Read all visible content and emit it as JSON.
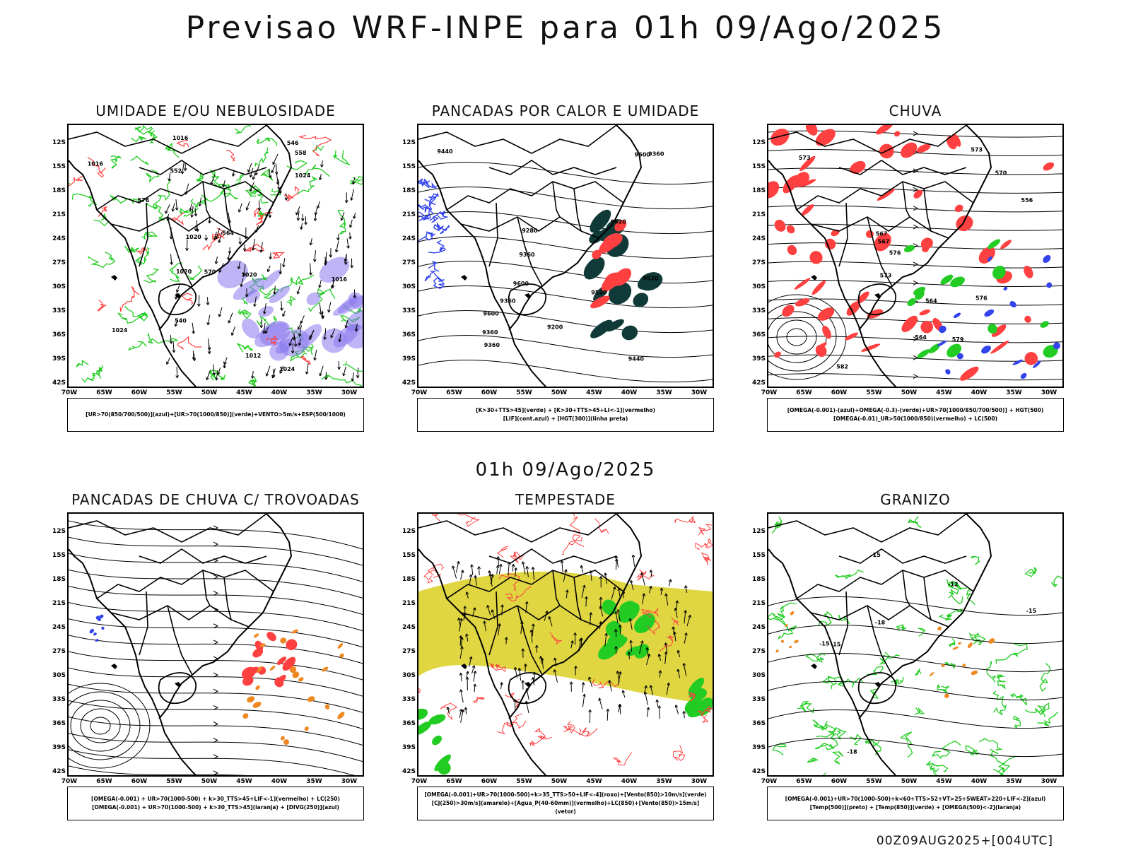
{
  "header": {
    "title": "Previsao WRF-INPE  para 01h 09/Ago/2025",
    "middle_date": "01h 09/Ago/2025",
    "stamp": "00Z09AUG2025+[004UTC]"
  },
  "axes": {
    "y_ticks": [
      "12S",
      "15S",
      "18S",
      "21S",
      "24S",
      "27S",
      "30S",
      "33S",
      "36S",
      "39S",
      "42S"
    ],
    "x_ticks": [
      "70W",
      "65W",
      "60W",
      "55W",
      "50W",
      "45W",
      "40W",
      "35W",
      "30W"
    ]
  },
  "colors": {
    "green": "#22cc22",
    "red": "#ff4040",
    "blue": "#3344ee",
    "purple": "#8877ee",
    "yellow": "#ddd22e",
    "orange": "#ee8822",
    "darkteal": "#0f3a38"
  },
  "panels": [
    {
      "title": "UMIDADE E/OU NEBULOSIDADE",
      "legend": [
        "[UR>70(850/700/500)](azul)+[UR>70(1000/850)](verde)+VENTO>5m/s+ESP(500/1000)"
      ],
      "contour_labels": [
        "1016",
        "1020",
        "1024",
        "1012",
        "1016",
        "1024",
        "1020",
        "1016",
        "1024",
        "564",
        "552",
        "546",
        "540",
        "576",
        "570",
        "558",
        "1020"
      ]
    },
    {
      "title": "PANCADAS POR CALOR E UMIDADE",
      "legend": [
        "[K>30+TTS>45](verde) + [K>30+TTS>45+LI<-1](vermelho)",
        "[LIF](cont.azul) + [HGT(300)](linha preta)"
      ],
      "contour_labels": [
        "9520",
        "9600",
        "9600",
        "9600",
        "9520",
        "9440",
        "9360",
        "9200",
        "9520",
        "9440",
        "9360",
        "9280",
        "9360",
        "9360",
        "9360"
      ]
    },
    {
      "title": "CHUVA",
      "legend": [
        "[OMEGA(-0.001)-(azul)+OMEGA(-0.3)-(verde)+UR>70(1000/850/700/500)] + HGT(500)",
        "[OMEGA(-0.01)_UR>50(1000/850)(vermelho) + LC(500)"
      ],
      "contour_labels": [
        "582",
        "579",
        "576",
        "573",
        "567",
        "564",
        "573",
        "576",
        "570",
        "567",
        "564",
        "556",
        "573"
      ]
    },
    {
      "title": "PANCADAS DE CHUVA C/ TROVOADAS",
      "legend": [
        "[OMEGA(-0.001) + UR>70(1000-500) + k>30_TTS>45+LIF<-1](vermelho) + LC(250)",
        "[OMEGA(-0.001) + UR>70(1000-500) + k>30_TTS>45](laranja) + [DIVG(250)](azul)"
      ],
      "contour_labels": []
    },
    {
      "title": "TEMPESTADE",
      "legend": [
        "[OMEGA(-0.001)+UR>70(1000-500)+k>35_TTS>50+LIF<-4](roxo)+[Vento(850)>10m/s](verde)",
        "[CJ(250)>30m/s](amarelo)+[Agua_P(40-60mm)](vermelho)+LC(850)+[Vento(850)>15m/s](vetor)"
      ],
      "contour_labels": []
    },
    {
      "title": "GRANIZO",
      "legend": [
        "[OMEGA(-0.001)+UR>70(1000-500)+k<60+TTS>52+VT>25+SWEAT>220+LIF<-2](azul)",
        "[Temp(500)](preto) + [Temp(850)](verde) + [OMEGA(500)<-2](laranja)"
      ],
      "contour_labels": [
        "-12",
        "-15",
        "-15",
        "-18",
        "-15",
        "-15",
        "-18"
      ]
    }
  ]
}
